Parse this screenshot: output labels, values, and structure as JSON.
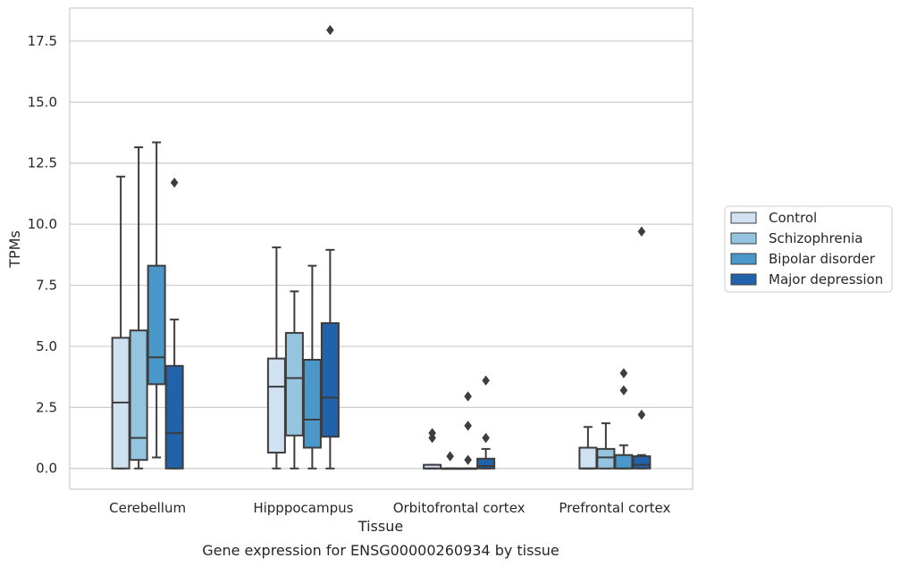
{
  "chart_data": {
    "type": "box",
    "title": "",
    "caption": "Gene expression for ENSG00000260934 by tissue",
    "xlabel": "Tissue",
    "ylabel": "TPMs",
    "ylim": [
      -0.85,
      18.85
    ],
    "yticks": [
      "0.0",
      "2.5",
      "5.0",
      "7.5",
      "10.0",
      "12.5",
      "15.0",
      "17.5"
    ],
    "ytick_values": [
      0,
      2.5,
      5,
      7.5,
      10,
      12.5,
      15,
      17.5
    ],
    "categories": [
      "Cerebellum",
      "Hipppocampus",
      "Orbitofrontal cortex",
      "Prefrontal cortex"
    ],
    "grid": "horizontal",
    "legend_position": "right",
    "series": [
      {
        "name": "Control",
        "color": "#d0e1f2",
        "boxes": [
          {
            "whislo": 0.0,
            "q1": 0.0,
            "med": 2.7,
            "q3": 5.35,
            "whishi": 11.95,
            "fliers": []
          },
          {
            "whislo": 0.0,
            "q1": 0.65,
            "med": 3.35,
            "q3": 4.5,
            "whishi": 9.05,
            "fliers": []
          },
          {
            "whislo": 0.0,
            "q1": 0.0,
            "med": 0.0,
            "q3": 0.15,
            "whishi": 0.15,
            "fliers": [
              1.45,
              1.25
            ]
          },
          {
            "whislo": 0.0,
            "q1": 0.0,
            "med": 0.0,
            "q3": 0.85,
            "whishi": 1.7,
            "fliers": []
          }
        ]
      },
      {
        "name": "Schizophrenia",
        "color": "#94c4df",
        "boxes": [
          {
            "whislo": 0.0,
            "q1": 0.35,
            "med": 1.25,
            "q3": 5.65,
            "whishi": 13.15,
            "fliers": []
          },
          {
            "whislo": 0.0,
            "q1": 1.35,
            "med": 3.7,
            "q3": 5.55,
            "whishi": 7.25,
            "fliers": []
          },
          {
            "whislo": 0.0,
            "q1": 0.0,
            "med": 0.0,
            "q3": 0.0,
            "whishi": 0.0,
            "fliers": [
              0.5
            ]
          },
          {
            "whislo": 0.0,
            "q1": 0.0,
            "med": 0.45,
            "q3": 0.8,
            "whishi": 1.85,
            "fliers": []
          }
        ]
      },
      {
        "name": "Bipolar disorder",
        "color": "#4a98c9",
        "boxes": [
          {
            "whislo": 0.45,
            "q1": 3.45,
            "med": 4.55,
            "q3": 8.3,
            "whishi": 13.35,
            "fliers": []
          },
          {
            "whislo": 0.0,
            "q1": 0.85,
            "med": 2.0,
            "q3": 4.45,
            "whishi": 8.3,
            "fliers": []
          },
          {
            "whislo": 0.0,
            "q1": 0.0,
            "med": 0.0,
            "q3": 0.0,
            "whishi": 0.0,
            "fliers": [
              2.95,
              1.75,
              0.35
            ]
          },
          {
            "whislo": 0.0,
            "q1": 0.0,
            "med": 0.0,
            "q3": 0.55,
            "whishi": 0.95,
            "fliers": [
              3.9,
              3.2
            ]
          }
        ]
      },
      {
        "name": "Major depression",
        "color": "#2163aa",
        "boxes": [
          {
            "whislo": 0.0,
            "q1": 0.0,
            "med": 1.45,
            "q3": 4.2,
            "whishi": 6.1,
            "fliers": [
              11.7
            ]
          },
          {
            "whislo": 0.0,
            "q1": 1.3,
            "med": 2.9,
            "q3": 5.95,
            "whishi": 8.95,
            "fliers": [
              17.95
            ]
          },
          {
            "whislo": 0.0,
            "q1": 0.0,
            "med": 0.1,
            "q3": 0.4,
            "whishi": 0.8,
            "fliers": [
              3.6,
              1.25
            ]
          },
          {
            "whislo": 0.0,
            "q1": 0.0,
            "med": 0.15,
            "q3": 0.5,
            "whishi": 0.55,
            "fliers": [
              9.7,
              2.2
            ]
          }
        ]
      }
    ]
  }
}
